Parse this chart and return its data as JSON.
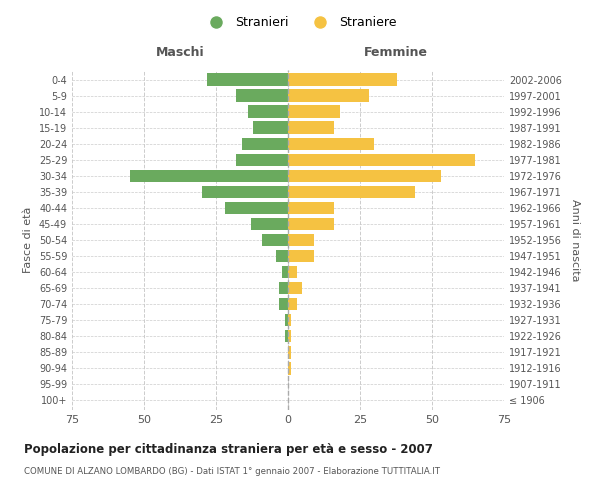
{
  "age_groups": [
    "100+",
    "95-99",
    "90-94",
    "85-89",
    "80-84",
    "75-79",
    "70-74",
    "65-69",
    "60-64",
    "55-59",
    "50-54",
    "45-49",
    "40-44",
    "35-39",
    "30-34",
    "25-29",
    "20-24",
    "15-19",
    "10-14",
    "5-9",
    "0-4"
  ],
  "birth_years": [
    "≤ 1906",
    "1907-1911",
    "1912-1916",
    "1917-1921",
    "1922-1926",
    "1927-1931",
    "1932-1936",
    "1937-1941",
    "1942-1946",
    "1947-1951",
    "1952-1956",
    "1957-1961",
    "1962-1966",
    "1967-1971",
    "1972-1976",
    "1977-1981",
    "1982-1986",
    "1987-1991",
    "1992-1996",
    "1997-2001",
    "2002-2006"
  ],
  "maschi": [
    0,
    0,
    0,
    0,
    1,
    1,
    3,
    3,
    2,
    4,
    9,
    13,
    22,
    30,
    55,
    18,
    16,
    12,
    14,
    18,
    28
  ],
  "femmine": [
    0,
    0,
    1,
    1,
    1,
    1,
    3,
    5,
    3,
    9,
    9,
    16,
    16,
    44,
    53,
    65,
    30,
    16,
    18,
    28,
    38
  ],
  "color_maschi": "#6aaa5e",
  "color_femmine": "#f5c242",
  "title": "Popolazione per cittadinanza straniera per età e sesso - 2007",
  "subtitle": "COMUNE DI ALZANO LOMBARDO (BG) - Dati ISTAT 1° gennaio 2007 - Elaborazione TUTTITALIA.IT",
  "xlabel_left": "Maschi",
  "xlabel_right": "Femmine",
  "ylabel_left": "Fasce di età",
  "ylabel_right": "Anni di nascita",
  "legend_maschi": "Stranieri",
  "legend_femmine": "Straniere",
  "xlim": 75,
  "background_color": "#ffffff",
  "grid_color": "#cccccc"
}
